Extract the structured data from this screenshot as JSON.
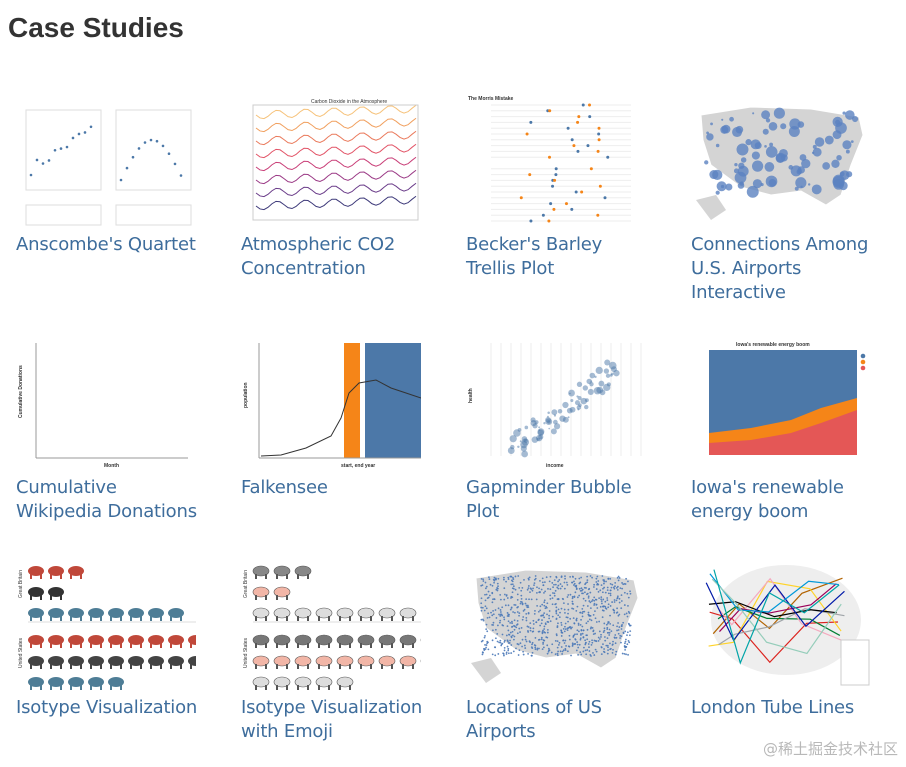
{
  "header": {
    "title": "Case Studies"
  },
  "items": [
    {
      "title": "Anscombe's Quartet"
    },
    {
      "title": "Atmospheric CO2 Concentration",
      "thumb_texts": [
        "Carbon Dioxide in the Atmosphere"
      ]
    },
    {
      "title": "Becker's Barley Trellis Plot",
      "thumb_texts": [
        "The Morris Mistake"
      ]
    },
    {
      "title": "Connections Among U.S. Airports Interactive"
    },
    {
      "title": "Cumulative Wikipedia Donations",
      "thumb_texts": [
        "Cumulative Donations",
        "Month"
      ]
    },
    {
      "title": "Falkensee",
      "thumb_texts": [
        "population",
        "start, end year"
      ]
    },
    {
      "title": "Gapminder Bubble Plot",
      "thumb_texts": [
        "health",
        "income"
      ]
    },
    {
      "title": "Iowa's renewable energy boom",
      "thumb_texts": [
        "Iowa's renewable energy boom"
      ]
    },
    {
      "title": "Isotype Visualization",
      "thumb_texts": [
        "Great Britain",
        "United States"
      ]
    },
    {
      "title": "Isotype Visualization with Emoji",
      "thumb_texts": [
        "Great Britain",
        "United States"
      ]
    },
    {
      "title": "Locations of US Airports"
    },
    {
      "title": "London Tube Lines"
    }
  ],
  "watermark": "@稀土掘金技术社区"
}
